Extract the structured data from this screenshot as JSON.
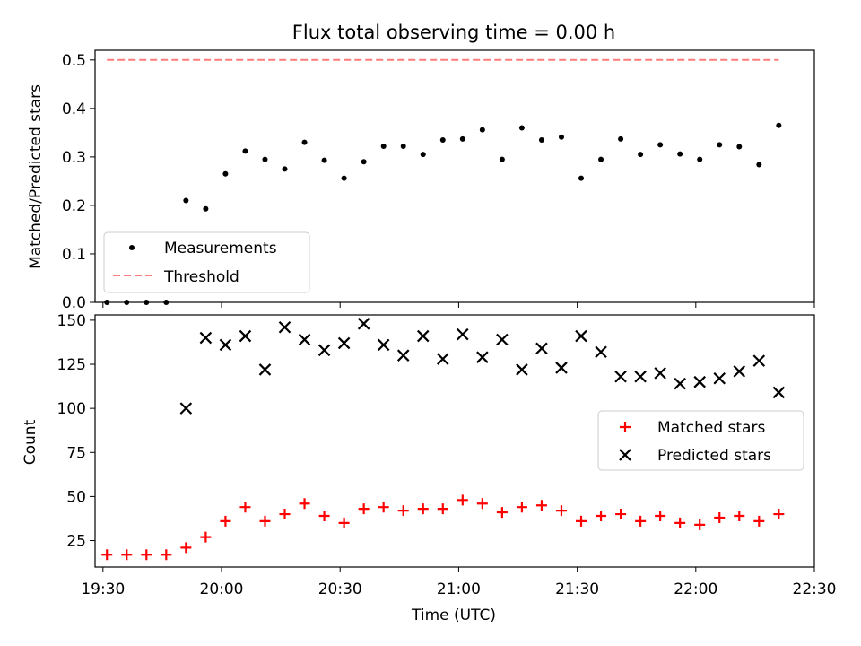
{
  "chart_data": [
    {
      "type": "scatter",
      "title": "Flux total observing time = 0.00 h",
      "xlabel": "",
      "ylabel": "Matched/Predicted stars",
      "xlim": [
        "19:28",
        "22:30"
      ],
      "ylim": [
        0,
        0.52
      ],
      "yticks": [
        "0.0",
        "0.1",
        "0.2",
        "0.3",
        "0.4",
        "0.5"
      ],
      "grid": false,
      "legend_position": "lower-left",
      "series": [
        {
          "name": "Measurements",
          "kind": "scatter",
          "marker": "dot",
          "color": "#000000",
          "x": [
            "19:31",
            "19:36",
            "19:41",
            "19:46",
            "19:51",
            "19:56",
            "20:01",
            "20:06",
            "20:11",
            "20:16",
            "20:21",
            "20:26",
            "20:31",
            "20:36",
            "20:41",
            "20:46",
            "20:51",
            "20:56",
            "21:01",
            "21:06",
            "21:11",
            "21:16",
            "21:21",
            "21:26",
            "21:31",
            "21:36",
            "21:41",
            "21:46",
            "21:51",
            "21:56",
            "22:01",
            "22:06",
            "22:11",
            "22:16",
            "22:21"
          ],
          "y": [
            0.0,
            0.0,
            0.0,
            0.0,
            0.21,
            0.193,
            0.265,
            0.312,
            0.295,
            0.275,
            0.33,
            0.293,
            0.256,
            0.29,
            0.322,
            0.322,
            0.305,
            0.335,
            0.337,
            0.356,
            0.295,
            0.36,
            0.335,
            0.341,
            0.256,
            0.295,
            0.337,
            0.305,
            0.325,
            0.306,
            0.295,
            0.325,
            0.321,
            0.284,
            0.365
          ]
        },
        {
          "name": "Threshold",
          "kind": "line",
          "style": "dashed",
          "color": "#ff7b7b",
          "x": [
            "19:31",
            "22:21"
          ],
          "y": [
            0.5,
            0.5
          ]
        }
      ]
    },
    {
      "type": "scatter",
      "title": "",
      "xlabel": "Time (UTC)",
      "ylabel": "Count",
      "xlim": [
        "19:28",
        "22:30"
      ],
      "xticks": [
        "19:30",
        "20:00",
        "20:30",
        "21:00",
        "21:30",
        "22:00",
        "22:30"
      ],
      "ylim": [
        10,
        153
      ],
      "yticks": [
        "25",
        "50",
        "75",
        "100",
        "125",
        "150"
      ],
      "grid": false,
      "legend_position": "center-right",
      "series": [
        {
          "name": "Matched stars",
          "marker": "plus",
          "color": "#ff0000",
          "x": [
            "19:31",
            "19:36",
            "19:41",
            "19:46",
            "19:51",
            "19:56",
            "20:01",
            "20:06",
            "20:11",
            "20:16",
            "20:21",
            "20:26",
            "20:31",
            "20:36",
            "20:41",
            "20:46",
            "20:51",
            "20:56",
            "21:01",
            "21:06",
            "21:11",
            "21:16",
            "21:21",
            "21:26",
            "21:31",
            "21:36",
            "21:41",
            "21:46",
            "21:51",
            "21:56",
            "22:01",
            "22:06",
            "22:11",
            "22:16",
            "22:21"
          ],
          "y": [
            17,
            17,
            17,
            17,
            21,
            27,
            36,
            44,
            36,
            40,
            46,
            39,
            35,
            43,
            44,
            42,
            43,
            43,
            48,
            46,
            41,
            44,
            45,
            42,
            36,
            39,
            40,
            36,
            39,
            35,
            34,
            38,
            39,
            36,
            40
          ]
        },
        {
          "name": "Predicted stars",
          "marker": "x",
          "color": "#000000",
          "x": [
            "19:51",
            "19:56",
            "20:01",
            "20:06",
            "20:11",
            "20:16",
            "20:21",
            "20:26",
            "20:31",
            "20:36",
            "20:41",
            "20:46",
            "20:51",
            "20:56",
            "21:01",
            "21:06",
            "21:11",
            "21:16",
            "21:21",
            "21:26",
            "21:31",
            "21:36",
            "21:41",
            "21:46",
            "21:51",
            "21:56",
            "22:01",
            "22:06",
            "22:11",
            "22:16",
            "22:21"
          ],
          "y": [
            100,
            140,
            136,
            141,
            122,
            146,
            139,
            133,
            137,
            148,
            136,
            130,
            141,
            128,
            142,
            129,
            139,
            122,
            134,
            123,
            141,
            132,
            118,
            118,
            120,
            114,
            115,
            117,
            121,
            127,
            109
          ]
        }
      ]
    }
  ]
}
